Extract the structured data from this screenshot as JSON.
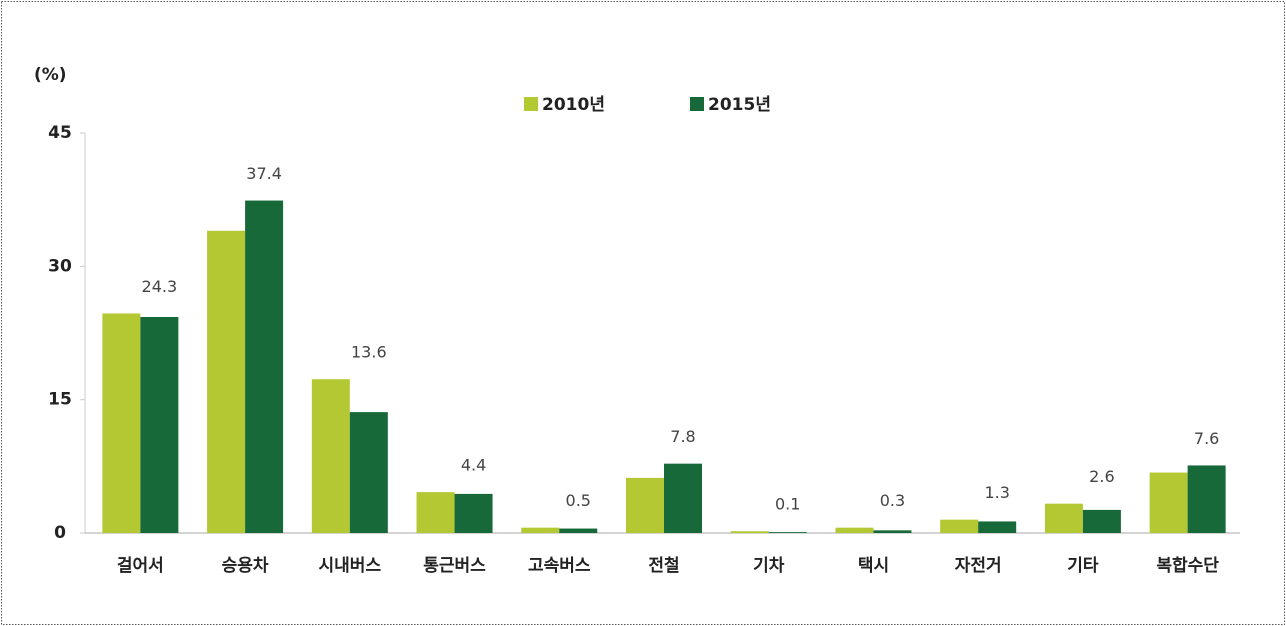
{
  "chart_data": {
    "type": "bar",
    "y_label": "(%)",
    "categories": [
      "걸어서",
      "승용차",
      "시내버스",
      "통근버스",
      "고속버스",
      "전철",
      "기차",
      "택시",
      "자전거",
      "기타",
      "복합수단"
    ],
    "series": [
      {
        "name": "2010년",
        "color": "#b4c834",
        "values": [
          24.7,
          34.0,
          17.3,
          4.6,
          0.6,
          6.2,
          0.2,
          0.6,
          1.5,
          3.3,
          6.8
        ]
      },
      {
        "name": "2015년",
        "color": "#17693a",
        "values": [
          24.3,
          37.4,
          13.6,
          4.4,
          0.5,
          7.8,
          0.1,
          0.3,
          1.3,
          2.6,
          7.6
        ]
      }
    ],
    "labeled_series": 1,
    "ylim": [
      0,
      45
    ],
    "yticks": [
      0,
      15,
      30,
      45
    ],
    "grid": false,
    "legend": "top"
  }
}
